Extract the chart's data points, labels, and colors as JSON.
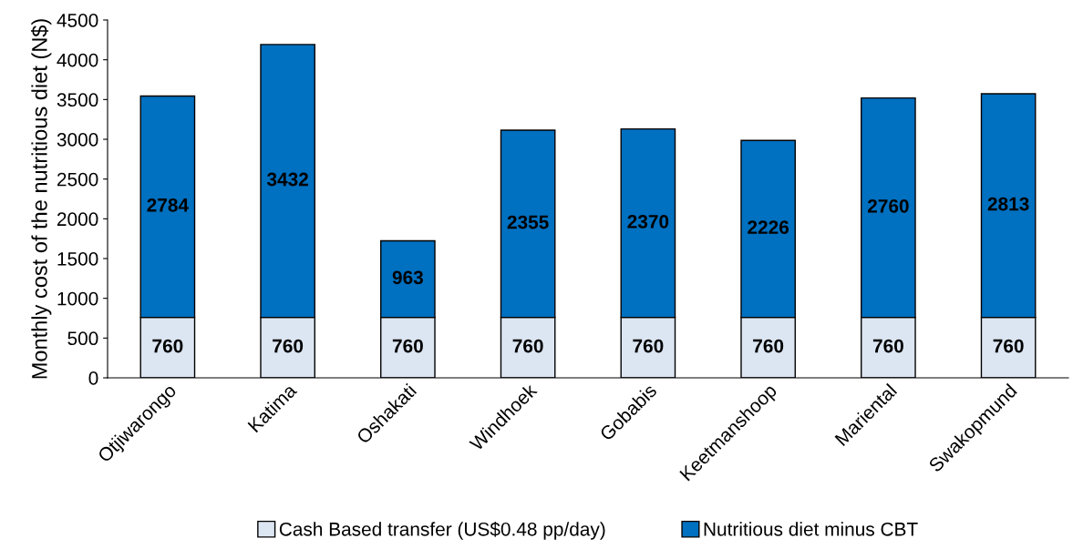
{
  "chart_data": {
    "type": "bar",
    "stacked": true,
    "ylabel": "Monthly cost of the nutritious diet (N$)",
    "categories": [
      "Otjiwarongo",
      "Katima",
      "Oshakati",
      "Windhoek",
      "Gobabis",
      "Keetmanshoop",
      "Mariental",
      "Swakopmund"
    ],
    "series": [
      {
        "name": "Cash Based transfer (US$0.48 pp/day)",
        "color": "#dce6f2",
        "values": [
          760,
          760,
          760,
          760,
          760,
          760,
          760,
          760
        ]
      },
      {
        "name": "Nutritious diet minus CBT",
        "color": "#0070c0",
        "values": [
          2784,
          3432,
          963,
          2355,
          2370,
          2226,
          2760,
          2813
        ]
      }
    ],
    "ylim": [
      0,
      4500
    ],
    "yticks": [
      0,
      500,
      1000,
      1500,
      2000,
      2500,
      3000,
      3500,
      4000,
      4500
    ],
    "data_labels": true,
    "legend": "bottom",
    "grid": false
  }
}
